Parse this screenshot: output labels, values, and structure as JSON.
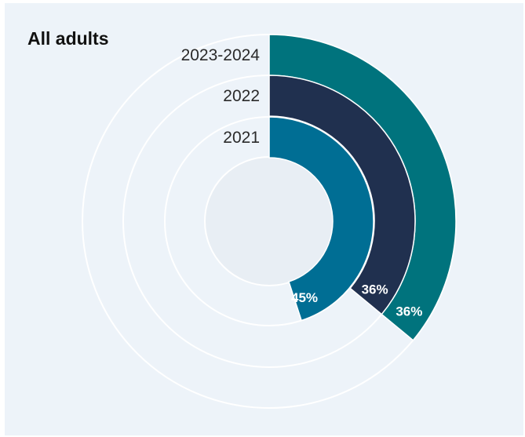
{
  "chart_data": {
    "type": "radial-bar",
    "title": "All adults",
    "series": [
      {
        "label": "2023-2024",
        "value": 36,
        "value_label": "36%",
        "color": "#00737d"
      },
      {
        "label": "2022",
        "value": 36,
        "value_label": "36%",
        "color": "#20304f"
      },
      {
        "label": "2021",
        "value": 45,
        "value_label": "45%",
        "color": "#006e94"
      }
    ],
    "max": 100
  }
}
